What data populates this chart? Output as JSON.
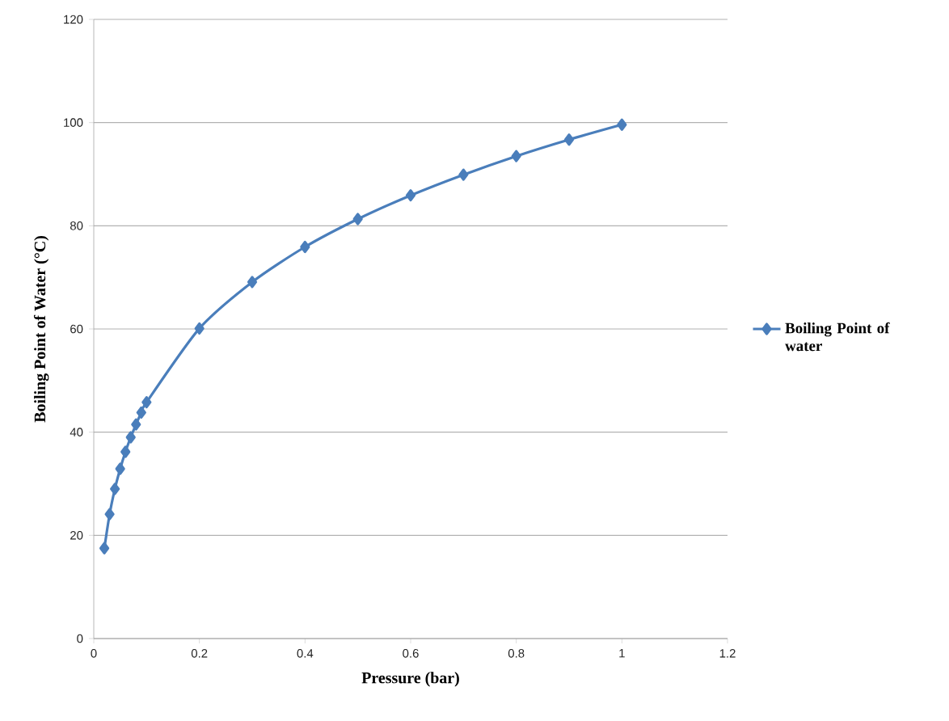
{
  "chart_data": {
    "type": "line",
    "xlabel": "Pressure (bar)",
    "ylabel": "Boiling Point of Water (°C)",
    "x": [
      0.02,
      0.03,
      0.04,
      0.05,
      0.06,
      0.07,
      0.08,
      0.09,
      0.1,
      0.2,
      0.3,
      0.4,
      0.5,
      0.6,
      0.7,
      0.8,
      0.9,
      1.0
    ],
    "series": [
      {
        "name": "Boiling Point of water",
        "color": "#4a7ebb",
        "values": [
          17.5,
          24.1,
          29.0,
          32.9,
          36.2,
          39.0,
          41.5,
          43.8,
          45.8,
          60.1,
          69.1,
          75.9,
          81.3,
          85.9,
          89.9,
          93.5,
          96.7,
          99.6
        ]
      }
    ],
    "xlim": [
      0,
      1.2
    ],
    "ylim": [
      0,
      120
    ],
    "xticks": [
      0,
      0.2,
      0.4,
      0.6,
      0.8,
      1,
      1.2
    ],
    "yticks": [
      0,
      20,
      40,
      60,
      80,
      100,
      120
    ],
    "grid": "y",
    "legend": "right",
    "marker": "diamond",
    "line_style": "solid"
  }
}
